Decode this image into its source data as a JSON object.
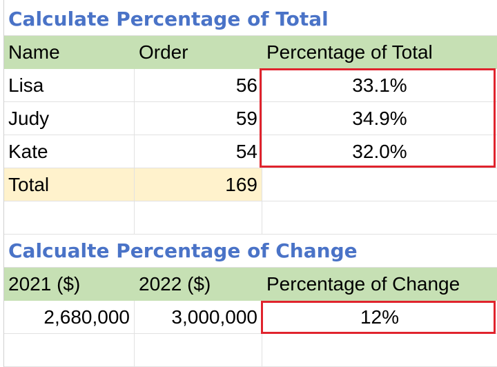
{
  "section1": {
    "title": "Calculate Percentage of Total",
    "headers": {
      "name": "Name",
      "order": "Order",
      "percent": "Percentage of Total"
    },
    "rows": [
      {
        "name": "Lisa",
        "order": "56",
        "percent": "33.1%"
      },
      {
        "name": "Judy",
        "order": "59",
        "percent": "34.9%"
      },
      {
        "name": "Kate",
        "order": "54",
        "percent": "32.0%"
      }
    ],
    "total": {
      "label": "Total",
      "value": "169"
    }
  },
  "section2": {
    "title": "Calcualte Percentage of Change",
    "headers": {
      "y2021": "2021 ($)",
      "y2022": "2022 ($)",
      "change": "Percentage of Change"
    },
    "rows": [
      {
        "y2021": "2,680,000",
        "y2022": "3,000,000",
        "change": "12%"
      }
    ]
  },
  "colors": {
    "title": "#4a73c7",
    "header_fill": "#c6e0b4",
    "total_fill": "#fff2cc",
    "highlight_border": "#e0232d",
    "gridline": "#e1e1e1"
  }
}
